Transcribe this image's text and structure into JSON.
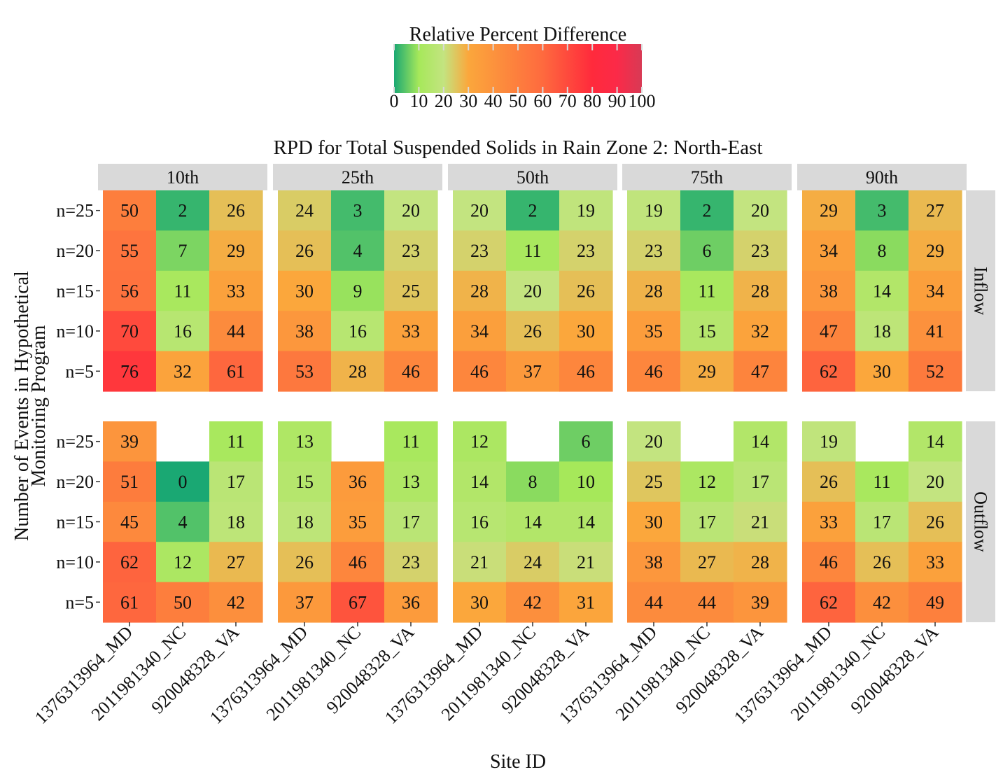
{
  "chart_data": {
    "type": "heatmap",
    "title": "RPD for Total Suspended Solids in Rain Zone 2: North-East",
    "xlabel": "Site ID",
    "ylabel_lines": [
      "Number of Events in Hypothetical",
      "Monitoring Program"
    ],
    "legend": {
      "title": "Relative Percent Difference",
      "position": "top-center",
      "range": [
        0,
        100
      ],
      "ticks": [
        "0",
        "10",
        "20",
        "30",
        "40",
        "50",
        "60",
        "70",
        "80",
        "90",
        "100"
      ],
      "colors": [
        {
          "at": 0,
          "color": "#1aa873"
        },
        {
          "at": 10,
          "color": "#a6e85a"
        },
        {
          "at": 20,
          "color": "#c3e480"
        },
        {
          "at": 30,
          "color": "#fba73c"
        },
        {
          "at": 60,
          "color": "#fe6a3e"
        },
        {
          "at": 80,
          "color": "#ff2a3c"
        },
        {
          "at": 90,
          "color": "#fb2a48"
        },
        {
          "at": 100,
          "color": "#d83a55"
        }
      ]
    },
    "column_facets": [
      "10th",
      "25th",
      "50th",
      "75th",
      "90th"
    ],
    "row_facets": [
      "Inflow",
      "Outflow"
    ],
    "sites": [
      "1376313964_MD",
      "2011981340_NC",
      "920048328_VA"
    ],
    "events": [
      "n=25",
      "n=20",
      "n=15",
      "n=10",
      "n=5"
    ],
    "values": {
      "Inflow": {
        "10th": [
          [
            50,
            2,
            26
          ],
          [
            55,
            7,
            29
          ],
          [
            56,
            11,
            33
          ],
          [
            70,
            16,
            44
          ],
          [
            76,
            32,
            61
          ]
        ],
        "25th": [
          [
            24,
            3,
            20
          ],
          [
            26,
            4,
            23
          ],
          [
            30,
            9,
            25
          ],
          [
            38,
            16,
            33
          ],
          [
            53,
            28,
            46
          ]
        ],
        "50th": [
          [
            20,
            2,
            19
          ],
          [
            23,
            11,
            23
          ],
          [
            28,
            20,
            26
          ],
          [
            34,
            26,
            30
          ],
          [
            46,
            37,
            46
          ]
        ],
        "75th": [
          [
            19,
            2,
            20
          ],
          [
            23,
            6,
            23
          ],
          [
            28,
            11,
            28
          ],
          [
            35,
            15,
            32
          ],
          [
            46,
            29,
            47
          ]
        ],
        "90th": [
          [
            29,
            3,
            27
          ],
          [
            34,
            8,
            29
          ],
          [
            38,
            14,
            34
          ],
          [
            47,
            18,
            41
          ],
          [
            62,
            30,
            52
          ]
        ]
      },
      "Outflow": {
        "10th": [
          [
            39,
            null,
            11
          ],
          [
            51,
            0,
            17
          ],
          [
            45,
            4,
            18
          ],
          [
            62,
            12,
            27
          ],
          [
            61,
            50,
            42
          ]
        ],
        "25th": [
          [
            13,
            null,
            11
          ],
          [
            15,
            36,
            13
          ],
          [
            18,
            35,
            17
          ],
          [
            26,
            46,
            23
          ],
          [
            37,
            67,
            36
          ]
        ],
        "50th": [
          [
            12,
            null,
            6
          ],
          [
            14,
            8,
            10
          ],
          [
            16,
            14,
            14
          ],
          [
            21,
            24,
            21
          ],
          [
            30,
            42,
            31
          ]
        ],
        "75th": [
          [
            20,
            null,
            14
          ],
          [
            25,
            12,
            17
          ],
          [
            30,
            17,
            21
          ],
          [
            38,
            27,
            28
          ],
          [
            44,
            44,
            39
          ]
        ],
        "90th": [
          [
            19,
            null,
            14
          ],
          [
            26,
            11,
            20
          ],
          [
            33,
            17,
            26
          ],
          [
            46,
            26,
            33
          ],
          [
            62,
            42,
            49
          ]
        ]
      }
    }
  }
}
